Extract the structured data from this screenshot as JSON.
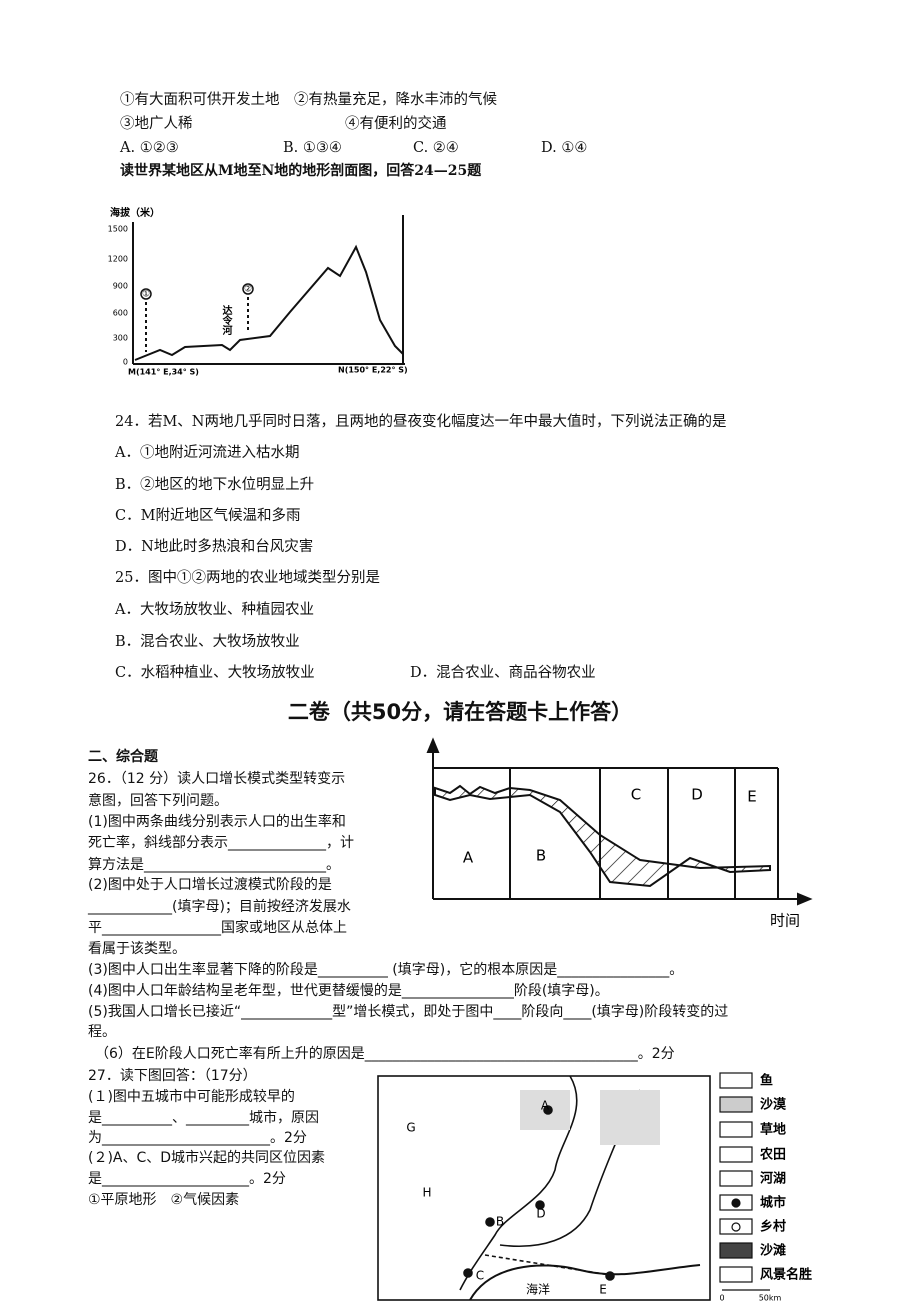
{
  "top_lines": [
    "①有大面积可供开发土地　②有热量充足，降水丰沛的气候",
    "③地广人稀",
    "④有便利的交通"
  ],
  "options_23": [
    "A. ①②③",
    "B. ①③④",
    "C. ②④",
    "D. ①④"
  ],
  "intro_24_25": "读世界某地区从M地至N地的地形剖面图，回答24—25题",
  "profile_figure": {
    "y_label": "海拔（米）",
    "yticks": [
      "1500",
      "1200",
      "900",
      "600",
      "300",
      "0"
    ],
    "marker_1": "①",
    "marker_2": "②",
    "river": "达令河",
    "x_left": "M(141° E,34° S)",
    "x_right": "N(150° E,22° S)"
  },
  "q24": {
    "stem": "24．若M、N两地几乎同时日落，且两地的昼夜变化幅度达一年中最大值时，下列说法正确的是",
    "options": [
      "A．①地附近河流进入枯水期",
      "B．②地区的地下水位明显上升",
      "C．M附近地区气候温和多雨",
      "D．N地此时多热浪和台风灾害"
    ]
  },
  "q25": {
    "stem": "25．图中①②两地的农业地域类型分别是",
    "options": [
      "A．大牧场放牧业、种植园农业",
      "B．混合农业、大牧场放牧业",
      "C．水稻种植业、大牧场放牧业",
      "D．混合农业、商品谷物农业"
    ]
  },
  "section_heading": "二卷（共50分，请在答题卡上作答）",
  "section_title": "二、综合题",
  "q26": {
    "lines": [
      "26．（12 分）读人口增长模式类型转变示",
      "意图，回答下列问题。",
      "(1)图中两条曲线分别表示人口的出生率和",
      "死亡率，斜线部分表示______________，计",
      "算方法是__________________________。",
      "(2)图中处于人口增长过渡模式阶段的是",
      "____________(填字母)；目前按经济发展水",
      "平_________________国家或地区从总体上",
      "看属于该类型。",
      "(3)图中人口出生率显著下降的阶段是__________ (填字母)，它的根本原因是________________。",
      "(4)图中人口年龄结构呈老年型，世代更替缓慢的是________________阶段(填字母)。",
      "(5)我国人口增长已接近“_____________型”增长模式，即处于图中____阶段向____(填字母)阶段转变的过",
      "程。",
      "（6）在E阶段人口死亡率有所上升的原因是_______________________________________。2分"
    ]
  },
  "population_figure": {
    "stages": [
      "A",
      "B",
      "C",
      "D",
      "E"
    ],
    "x_label": "时间"
  },
  "q27": {
    "lines": [
      "27．读下图回答：（17分）",
      "(１)图中五城市中可能形成较早的",
      "是__________、_________城市，原因",
      "为________________________。2分",
      "(２)A、C、D城市兴起的共同区位因素",
      "是_____________________。2分",
      "①平原地形　②气候因素"
    ]
  },
  "map_figure": {
    "labels": [
      "G",
      "H",
      "A",
      "B",
      "D",
      "C",
      "E",
      "海洋"
    ],
    "legend": [
      "鱼",
      "沙漠",
      "草地",
      "农田",
      "河湖",
      "城市",
      "乡村",
      "沙滩",
      "风景名胜"
    ],
    "scale": [
      "0",
      "50km"
    ]
  }
}
